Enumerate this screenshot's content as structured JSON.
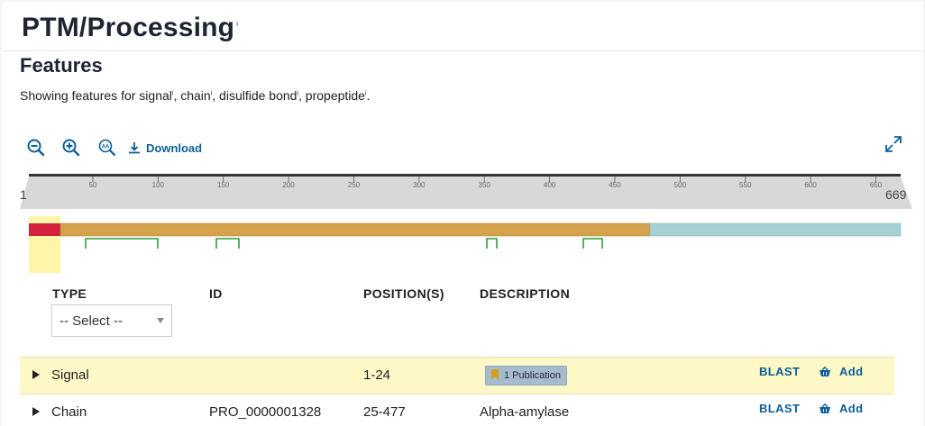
{
  "section": {
    "title": "PTM/Processing",
    "info": "i"
  },
  "features": {
    "title": "Features",
    "intro_prefix": "Showing features for ",
    "types": [
      "signal",
      "chain",
      "disulfide bond",
      "propeptide"
    ],
    "info": "i",
    "sep": ", ",
    "end": "."
  },
  "toolbar": {
    "zoom_out_icon": "zoom-out-icon",
    "zoom_in_icon": "zoom-in-icon",
    "zoom_reset_icon": "zoom-sequence-icon",
    "download_label": "Download",
    "fullscreen_icon": "expand-icon"
  },
  "ruler": {
    "start": "1",
    "end": "669",
    "ticks": [
      "50",
      "100",
      "150",
      "200",
      "250",
      "300",
      "350",
      "400",
      "450",
      "500",
      "550",
      "600",
      "650"
    ]
  },
  "tracks": {
    "colors": {
      "signal": "#d4213d",
      "chain": "#d4a24c",
      "propeptide": "#a6d1d4",
      "disulfide": "#2e9e3a",
      "highlight": "#fdf5a8"
    }
  },
  "table": {
    "headers": {
      "type": "TYPE",
      "id": "ID",
      "positions": "POSITION(S)",
      "description": "DESCRIPTION"
    },
    "filter": {
      "selected": "-- Select --"
    },
    "rows": [
      {
        "type": "Signal",
        "id": "",
        "positions": "1-24",
        "description": "",
        "badge": "1 Publication",
        "blast": "BLAST",
        "add": "Add"
      },
      {
        "type": "Chain",
        "id": "PRO_0000001328",
        "positions": "25-477",
        "description": "Alpha-amylase",
        "badge": "",
        "blast": "BLAST",
        "add": "Add"
      }
    ]
  }
}
